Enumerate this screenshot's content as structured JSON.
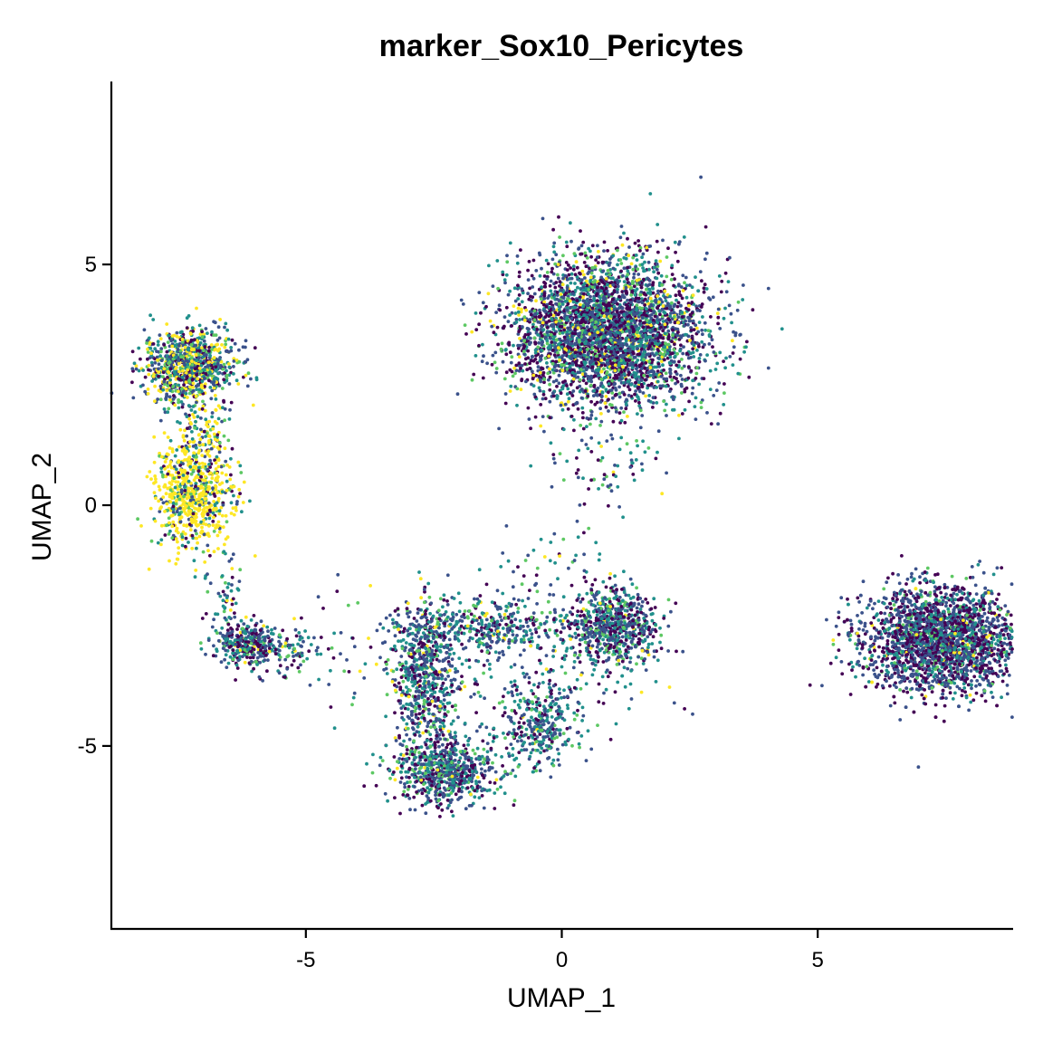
{
  "chart_data": {
    "type": "scatter",
    "title": "marker_Sox10_Pericytes",
    "xlabel": "UMAP_1",
    "ylabel": "UMAP_2",
    "xlim": [
      -8.8,
      8.8
    ],
    "ylim": [
      -8.8,
      8.8
    ],
    "x_ticks": [
      -5,
      0,
      5
    ],
    "y_ticks": [
      -5,
      0,
      5
    ],
    "x_tick_labels": [
      "-5",
      "0",
      "5"
    ],
    "y_tick_labels": [
      "-5",
      "0",
      "5"
    ],
    "grid": false,
    "legend": "none",
    "colormap": "viridis",
    "palette": [
      "#440154",
      "#3b528b",
      "#21908c",
      "#5dc863",
      "#fde725"
    ],
    "clusters": [
      {
        "cx": -7.3,
        "cy": 2.9,
        "sx": 0.45,
        "sy": 0.38,
        "n": 900,
        "weights": [
          0.15,
          0.25,
          0.25,
          0.12,
          0.23
        ]
      },
      {
        "cx": -7.2,
        "cy": 0.2,
        "sx": 0.38,
        "sy": 0.55,
        "n": 700,
        "weights": [
          0.05,
          0.1,
          0.12,
          0.08,
          0.65
        ]
      },
      {
        "cx": -7.0,
        "cy": 1.5,
        "sx": 0.25,
        "sy": 0.5,
        "n": 120,
        "weights": [
          0.05,
          0.15,
          0.2,
          0.1,
          0.5
        ]
      },
      {
        "cx": -6.6,
        "cy": -1.8,
        "sx": 0.15,
        "sy": 0.4,
        "n": 50,
        "weights": [
          0.1,
          0.3,
          0.3,
          0.2,
          0.1
        ]
      },
      {
        "cx": -6.2,
        "cy": -2.9,
        "sx": 0.3,
        "sy": 0.22,
        "n": 300,
        "weights": [
          0.25,
          0.3,
          0.3,
          0.1,
          0.05
        ]
      },
      {
        "cx": -5.4,
        "cy": -3.1,
        "sx": 0.5,
        "sy": 0.3,
        "n": 110,
        "weights": [
          0.15,
          0.35,
          0.35,
          0.12,
          0.03
        ]
      },
      {
        "cx": 0.9,
        "cy": 3.6,
        "sx": 0.95,
        "sy": 0.75,
        "n": 3600,
        "weights": [
          0.3,
          0.32,
          0.22,
          0.1,
          0.06
        ]
      },
      {
        "cx": 0.9,
        "cy": 1.0,
        "sx": 0.6,
        "sy": 0.6,
        "n": 90,
        "weights": [
          0.2,
          0.3,
          0.3,
          0.15,
          0.05
        ]
      },
      {
        "cx": 7.4,
        "cy": -2.8,
        "sx": 0.75,
        "sy": 0.55,
        "n": 2600,
        "weights": [
          0.35,
          0.4,
          0.17,
          0.06,
          0.02
        ]
      },
      {
        "cx": 1.0,
        "cy": -2.5,
        "sx": 0.45,
        "sy": 0.4,
        "n": 700,
        "weights": [
          0.25,
          0.35,
          0.28,
          0.1,
          0.02
        ]
      },
      {
        "cx": -2.7,
        "cy": -3.5,
        "sx": 0.3,
        "sy": 0.75,
        "n": 600,
        "weights": [
          0.2,
          0.35,
          0.3,
          0.1,
          0.05
        ]
      },
      {
        "cx": -2.3,
        "cy": -5.5,
        "sx": 0.5,
        "sy": 0.35,
        "n": 700,
        "weights": [
          0.25,
          0.35,
          0.28,
          0.1,
          0.02
        ]
      },
      {
        "cx": -1.5,
        "cy": -2.5,
        "sx": 0.8,
        "sy": 0.25,
        "n": 350,
        "weights": [
          0.2,
          0.35,
          0.3,
          0.12,
          0.03
        ]
      },
      {
        "cx": -0.4,
        "cy": -4.6,
        "sx": 0.35,
        "sy": 0.45,
        "n": 300,
        "weights": [
          0.15,
          0.3,
          0.4,
          0.12,
          0.03
        ]
      },
      {
        "cx": -1.0,
        "cy": -3.6,
        "sx": 1.3,
        "sy": 0.9,
        "n": 250,
        "weights": [
          0.2,
          0.3,
          0.3,
          0.12,
          0.08
        ]
      },
      {
        "cx": -0.2,
        "cy": -1.2,
        "sx": 0.5,
        "sy": 0.6,
        "n": 50,
        "weights": [
          0.2,
          0.3,
          0.3,
          0.15,
          0.05
        ]
      },
      {
        "cx": -4.2,
        "cy": -3.4,
        "sx": 0.5,
        "sy": 0.8,
        "n": 30,
        "weights": [
          0.2,
          0.3,
          0.35,
          0.1,
          0.05
        ]
      }
    ]
  }
}
